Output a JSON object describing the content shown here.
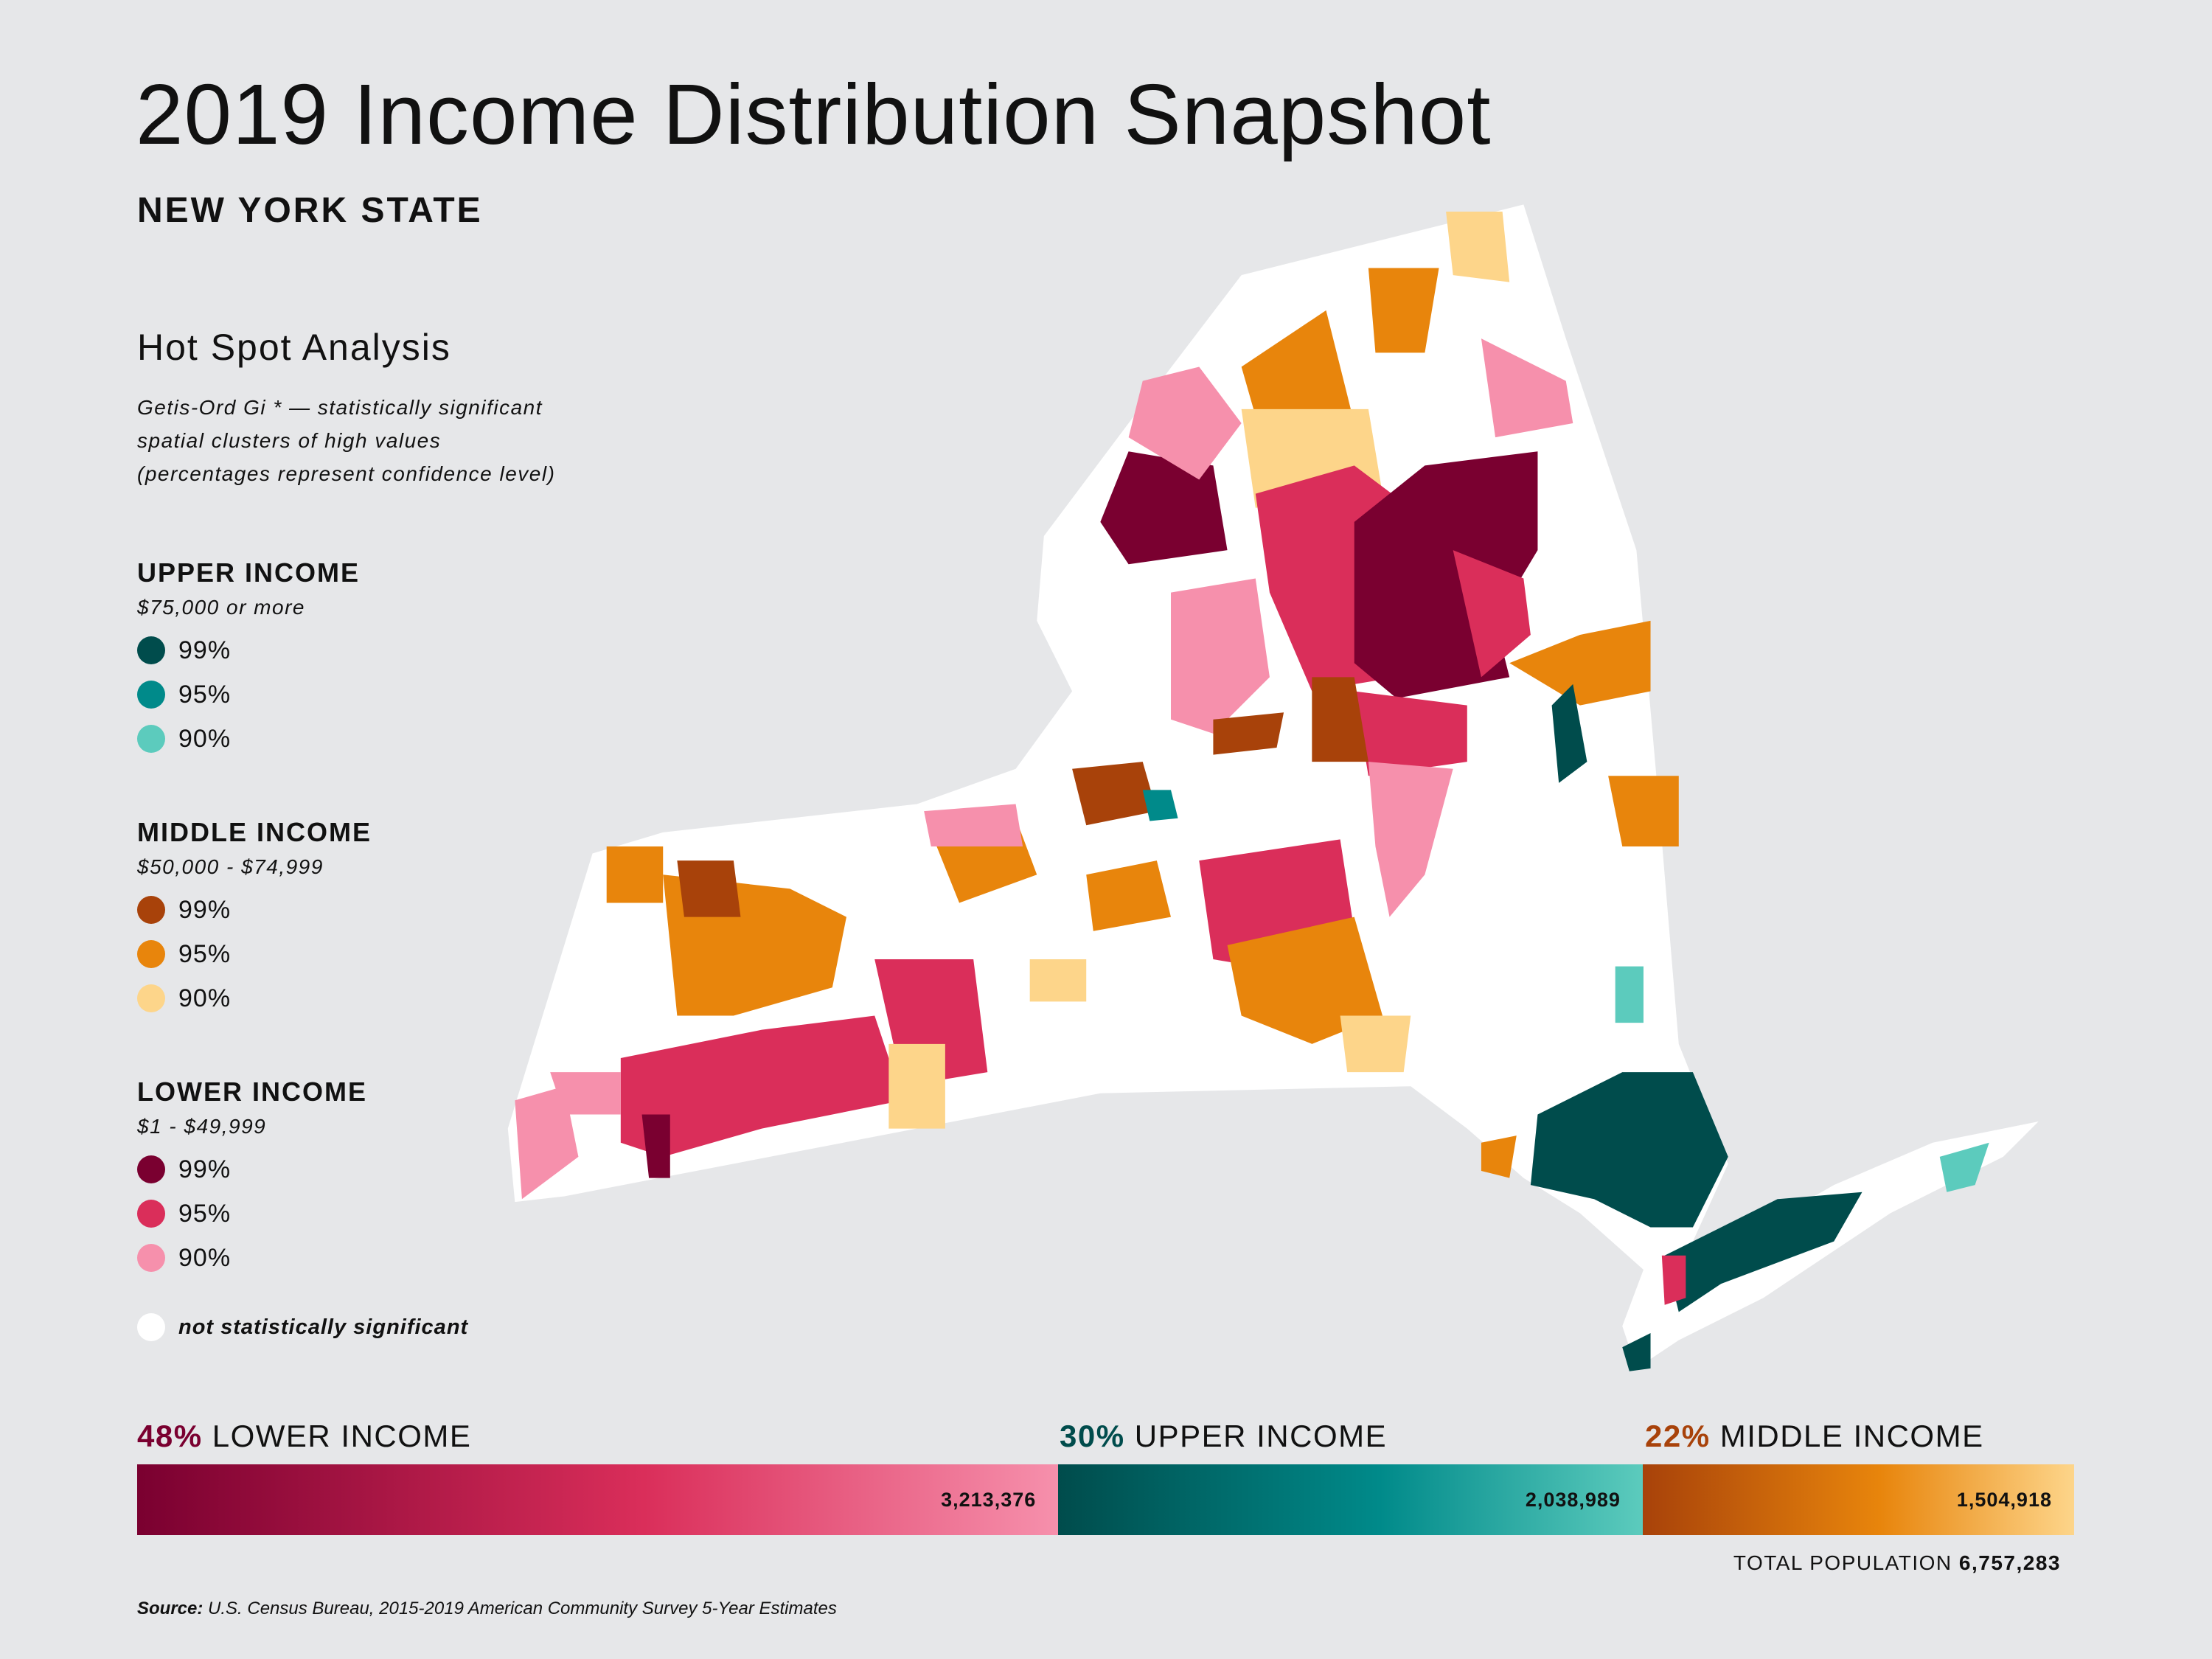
{
  "header": {
    "title": "2019 Income Distribution Snapshot",
    "subtitle": "NEW YORK STATE"
  },
  "legend": {
    "title": "Hot Spot Analysis",
    "description": [
      "Getis-Ord Gi * — statistically significant",
      "spatial clusters of high values",
      "(percentages represent confidence level)"
    ],
    "groups": [
      {
        "title": "UPPER INCOME",
        "range": "$75,000 or more",
        "items": [
          {
            "label": "99%",
            "color": "#004c4c"
          },
          {
            "label": "95%",
            "color": "#008a8a"
          },
          {
            "label": "90%",
            "color": "#5ccbbd"
          }
        ]
      },
      {
        "title": "MIDDLE INCOME",
        "range": "$50,000 - $74,999",
        "items": [
          {
            "label": "99%",
            "color": "#a8420a"
          },
          {
            "label": "95%",
            "color": "#e8850c"
          },
          {
            "label": "90%",
            "color": "#fdd58a"
          }
        ]
      },
      {
        "title": "LOWER INCOME",
        "range": "$1 - $49,999",
        "items": [
          {
            "label": "99%",
            "color": "#7a0030"
          },
          {
            "label": "95%",
            "color": "#da2e5a"
          },
          {
            "label": "90%",
            "color": "#f690ac"
          }
        ]
      }
    ],
    "not_significant": {
      "label": "not statistically significant",
      "color": "#ffffff"
    }
  },
  "chart_data": {
    "type": "bar",
    "orientation": "horizontal-stacked",
    "categories": [
      "LOWER INCOME",
      "UPPER INCOME",
      "MIDDLE INCOME"
    ],
    "percent_labels": [
      "48%",
      "30%",
      "22%"
    ],
    "values": [
      3213376,
      2038989,
      1504918
    ],
    "value_labels": [
      "3,213,376",
      "2,038,989",
      "1,504,918"
    ],
    "colors": [
      [
        "#7a0030",
        "#da2e5a",
        "#f690ac"
      ],
      [
        "#004c4c",
        "#008a8a",
        "#5ccbbd"
      ],
      [
        "#a8420a",
        "#e8850c",
        "#fdd58a"
      ]
    ],
    "total_label": "TOTAL POPULATION",
    "total_value": "6,757,283"
  },
  "footer": {
    "source_label": "Source:",
    "source_text": " U.S. Census Bureau, 2015-2019 American Community Survey 5-Year Estimates"
  }
}
